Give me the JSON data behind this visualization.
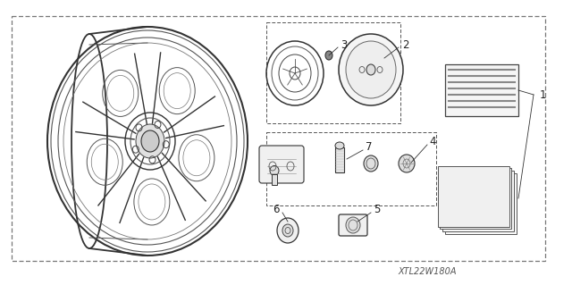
{
  "bg_color": "#ffffff",
  "diagram_code": "XTL22W180A",
  "line_color": "#444444",
  "text_color": "#222222"
}
